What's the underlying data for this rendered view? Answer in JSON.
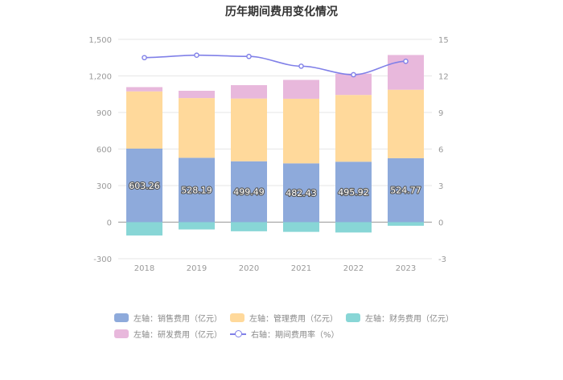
{
  "chart_data": {
    "type": "bar",
    "stacked": true,
    "title": "历年期间费用变化情况",
    "categories": [
      "2018",
      "2019",
      "2020",
      "2021",
      "2022",
      "2023"
    ],
    "series": [
      {
        "name": "左轴：销售费用（亿元）",
        "axis": "left",
        "color": "#8eaadb",
        "values": [
          603.26,
          528.19,
          499.49,
          482.43,
          495.92,
          524.77
        ],
        "labels": [
          "603.26",
          "528.19",
          "499.49",
          "482.43",
          "495.92",
          "524.77"
        ]
      },
      {
        "name": "左轴：管理费用（亿元）",
        "axis": "left",
        "color": "#ffd99b",
        "values": [
          470,
          490,
          515,
          530,
          548,
          562
        ]
      },
      {
        "name": "左轴：财务费用（亿元）",
        "axis": "left",
        "color": "#88d6d6",
        "values": [
          -110,
          -60,
          -75,
          -80,
          -85,
          -30
        ]
      },
      {
        "name": "左轴：研发费用（亿元）",
        "axis": "left",
        "color": "#e8b8dc",
        "values": [
          35,
          60,
          110,
          155,
          175,
          285
        ]
      },
      {
        "name": "右轴：期间费用率（%）",
        "axis": "right",
        "type": "line",
        "color": "#8080e8",
        "values": [
          13.5,
          13.7,
          13.6,
          12.8,
          12.1,
          13.2
        ]
      }
    ],
    "left_axis": {
      "min": -300,
      "max": 1500,
      "ticks": [
        -300,
        0,
        300,
        600,
        900,
        1200,
        1500
      ],
      "tick_labels": [
        "-300",
        "0",
        "300",
        "600",
        "900",
        "1,200",
        "1,500"
      ]
    },
    "right_axis": {
      "min": -3,
      "max": 15,
      "ticks": [
        -3,
        0,
        3,
        6,
        9,
        12,
        15
      ],
      "tick_labels": [
        "-3",
        "0",
        "3",
        "6",
        "9",
        "12",
        "15"
      ]
    },
    "grid": true,
    "legend_position": "bottom"
  }
}
